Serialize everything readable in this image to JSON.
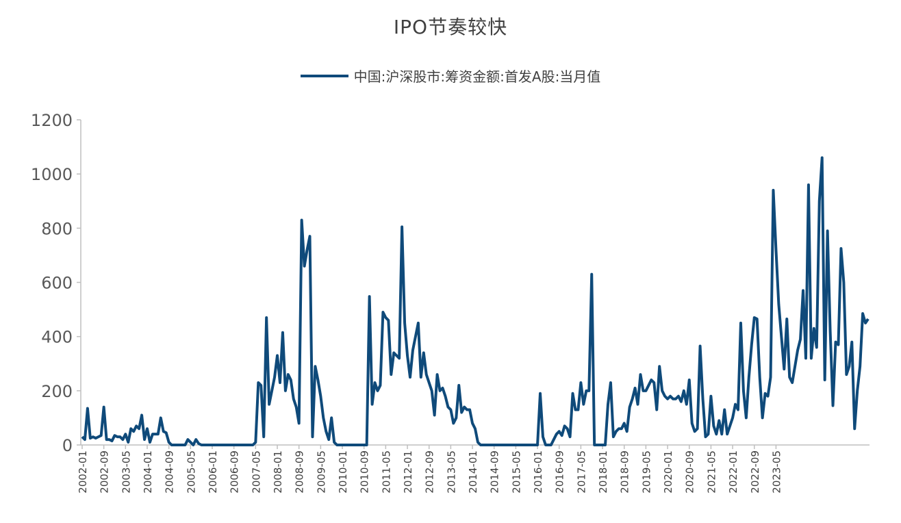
{
  "chart_data": {
    "type": "line",
    "title": "IPO节奏较快",
    "series_name": "中国:沪深股市:筹资金额:首发A股:当月值",
    "color": "#0f4a7a",
    "ylim": [
      0,
      1200
    ],
    "yticks": [
      0,
      200,
      400,
      600,
      800,
      1000,
      1200
    ],
    "x_tick_labels": [
      "2002-01",
      "2002-09",
      "2003-05",
      "2004-01",
      "2004-09",
      "2005-05",
      "2006-01",
      "2006-09",
      "2007-05",
      "2008-01",
      "2008-09",
      "2009-05",
      "2010-01",
      "2010-09",
      "2011-05",
      "2012-01",
      "2012-09",
      "2013-05",
      "2014-01",
      "2014-09",
      "2015-05",
      "2016-01",
      "2016-09",
      "2017-05",
      "2018-01",
      "2018-09",
      "2019-05",
      "2020-01",
      "2020-09",
      "2021-05",
      "2022-01",
      "2022-09",
      "2023-05"
    ],
    "start": "2002-01",
    "values": [
      30,
      20,
      135,
      25,
      30,
      25,
      30,
      35,
      140,
      20,
      20,
      15,
      35,
      30,
      30,
      20,
      40,
      10,
      60,
      50,
      70,
      60,
      110,
      20,
      60,
      10,
      40,
      40,
      40,
      100,
      50,
      45,
      10,
      0,
      0,
      0,
      0,
      0,
      0,
      20,
      10,
      0,
      20,
      5,
      0,
      0,
      0,
      0,
      0,
      0,
      0,
      0,
      0,
      0,
      0,
      0,
      0,
      0,
      0,
      0,
      0,
      0,
      0,
      0,
      10,
      230,
      220,
      30,
      470,
      150,
      200,
      250,
      330,
      230,
      415,
      200,
      260,
      240,
      170,
      140,
      80,
      830,
      660,
      720,
      770,
      30,
      290,
      240,
      180,
      100,
      50,
      20,
      100,
      10,
      0,
      0,
      0,
      0,
      0,
      0,
      0,
      0,
      0,
      0,
      0,
      0,
      548,
      150,
      230,
      200,
      220,
      490,
      470,
      460,
      260,
      340,
      330,
      320,
      805,
      450,
      330,
      250,
      350,
      400,
      450,
      250,
      340,
      260,
      230,
      200,
      110,
      260,
      200,
      210,
      180,
      140,
      130,
      80,
      100,
      220,
      120,
      140,
      130,
      130,
      80,
      60,
      10,
      0,
      0,
      0,
      0,
      0,
      0,
      0,
      0,
      0,
      0,
      0,
      0,
      0,
      0,
      0,
      0,
      0,
      0,
      0,
      0,
      0,
      0,
      190,
      30,
      0,
      0,
      0,
      20,
      40,
      50,
      35,
      70,
      60,
      30,
      190,
      130,
      130,
      230,
      150,
      200,
      200,
      630,
      0,
      0,
      0,
      0,
      0,
      150,
      230,
      30,
      50,
      60,
      60,
      80,
      50,
      140,
      170,
      210,
      150,
      260,
      200,
      200,
      220,
      240,
      230,
      130,
      290,
      200,
      180,
      170,
      180,
      170,
      170,
      180,
      160,
      200,
      150,
      240,
      80,
      50,
      60,
      365,
      170,
      30,
      40,
      180,
      70,
      40,
      90,
      40,
      130,
      40,
      70,
      100,
      150,
      130,
      450,
      200,
      100,
      250,
      370,
      470,
      465,
      250,
      100,
      190,
      180,
      250,
      940,
      720,
      520,
      400,
      280,
      465,
      250,
      230,
      290,
      350,
      390,
      570,
      320,
      960,
      320,
      430,
      360,
      900,
      1060,
      240,
      790,
      420,
      145,
      380,
      370,
      725,
      600,
      260,
      290,
      380,
      60,
      200,
      290,
      485,
      450,
      465
    ]
  }
}
